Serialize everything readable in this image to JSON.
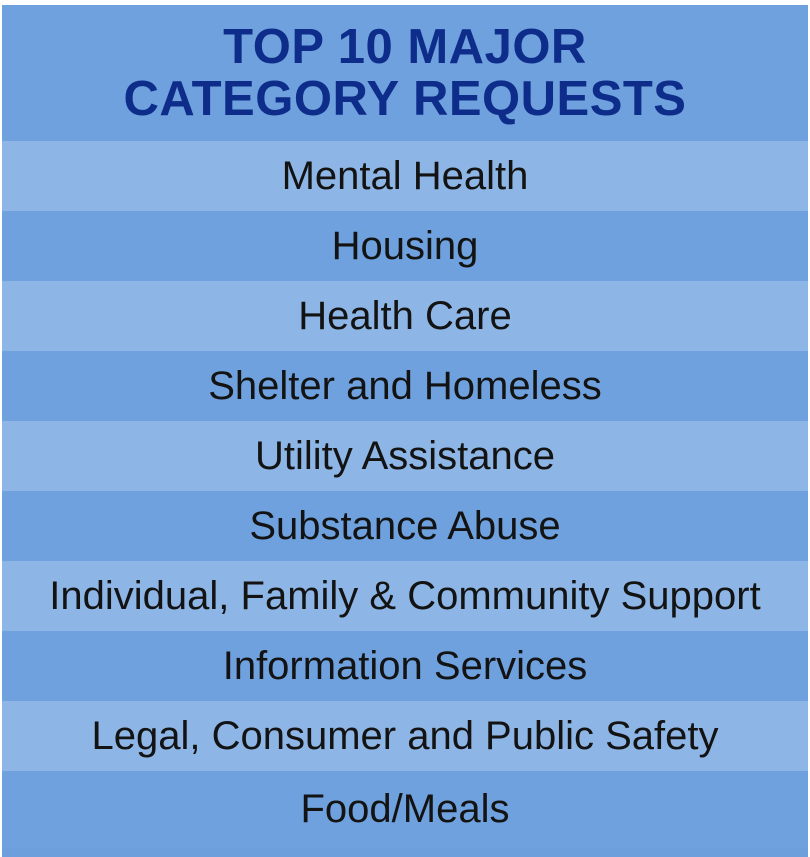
{
  "header": {
    "line1": "TOP 10 MAJOR",
    "line2": "CATEGORY REQUESTS"
  },
  "categories": [
    "Mental Health",
    "Housing",
    "Health Care",
    "Shelter and Homeless",
    "Utility Assistance",
    "Substance Abuse",
    "Individual, Family & Community Support",
    "Information Services",
    "Legal, Consumer and Public Safety",
    "Food/Meals"
  ],
  "colors": {
    "title": "#0e2d8a",
    "text": "#131313",
    "band_dark": "#6ea1dd",
    "band_light": "#8db6e6"
  }
}
